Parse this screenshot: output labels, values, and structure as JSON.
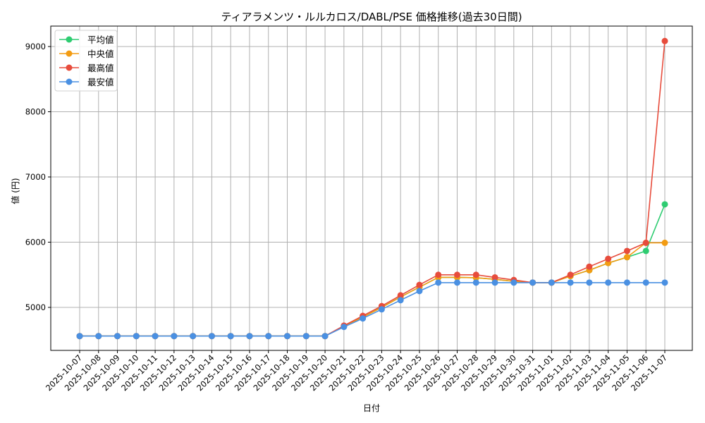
{
  "chart_data": {
    "type": "line",
    "title": "ティアラメンツ・ルルカロス/DABL/PSE 価格推移(過去30日間)",
    "xlabel": "日付",
    "ylabel": "値 (円)",
    "ylim": [
      4330,
      9320
    ],
    "yticks": [
      5000,
      6000,
      7000,
      8000,
      9000
    ],
    "grid": true,
    "legend_position": "upper left",
    "x": [
      "2025-10-07",
      "2025-10-08",
      "2025-10-09",
      "2025-10-10",
      "2025-10-11",
      "2025-10-12",
      "2025-10-13",
      "2025-10-14",
      "2025-10-15",
      "2025-10-16",
      "2025-10-17",
      "2025-10-18",
      "2025-10-19",
      "2025-10-20",
      "2025-10-21",
      "2025-10-22",
      "2025-10-23",
      "2025-10-24",
      "2025-10-25",
      "2025-10-26",
      "2025-10-27",
      "2025-10-28",
      "2025-10-29",
      "2025-10-30",
      "2025-10-31",
      "2025-11-01",
      "2025-11-02",
      "2025-11-03",
      "2025-11-04",
      "2025-11-05",
      "2025-11-06",
      "2025-11-07"
    ],
    "series": [
      {
        "name": "平均値",
        "color": "#2ecc71",
        "values": [
          4560,
          4560,
          4560,
          4560,
          4560,
          4560,
          4560,
          4560,
          4560,
          4560,
          4560,
          4560,
          4560,
          4560,
          4710,
          4850,
          5000,
          5160,
          5310,
          5460,
          5460,
          5455,
          5430,
          5400,
          5380,
          5380,
          5480,
          5570,
          5680,
          5770,
          5865,
          6580
        ]
      },
      {
        "name": "中央値",
        "color": "#f39c12",
        "values": [
          4560,
          4560,
          4560,
          4560,
          4560,
          4560,
          4560,
          4560,
          4560,
          4560,
          4560,
          4560,
          4560,
          4560,
          4710,
          4850,
          5000,
          5160,
          5310,
          5460,
          5460,
          5455,
          5430,
          5400,
          5380,
          5380,
          5480,
          5570,
          5680,
          5770,
          5990,
          5990
        ]
      },
      {
        "name": "最高値",
        "color": "#e74c3c",
        "values": [
          4560,
          4560,
          4560,
          4560,
          4560,
          4560,
          4560,
          4560,
          4560,
          4560,
          4560,
          4560,
          4560,
          4560,
          4720,
          4870,
          5020,
          5185,
          5345,
          5500,
          5500,
          5500,
          5460,
          5420,
          5380,
          5380,
          5500,
          5625,
          5745,
          5865,
          5990,
          9085
        ]
      },
      {
        "name": "最安値",
        "color": "#4a90e2",
        "values": [
          4560,
          4560,
          4560,
          4560,
          4560,
          4560,
          4560,
          4560,
          4560,
          4560,
          4560,
          4560,
          4560,
          4560,
          4700,
          4830,
          4970,
          5110,
          5250,
          5380,
          5380,
          5380,
          5380,
          5380,
          5380,
          5380,
          5380,
          5380,
          5380,
          5380,
          5380,
          5380
        ]
      }
    ]
  }
}
